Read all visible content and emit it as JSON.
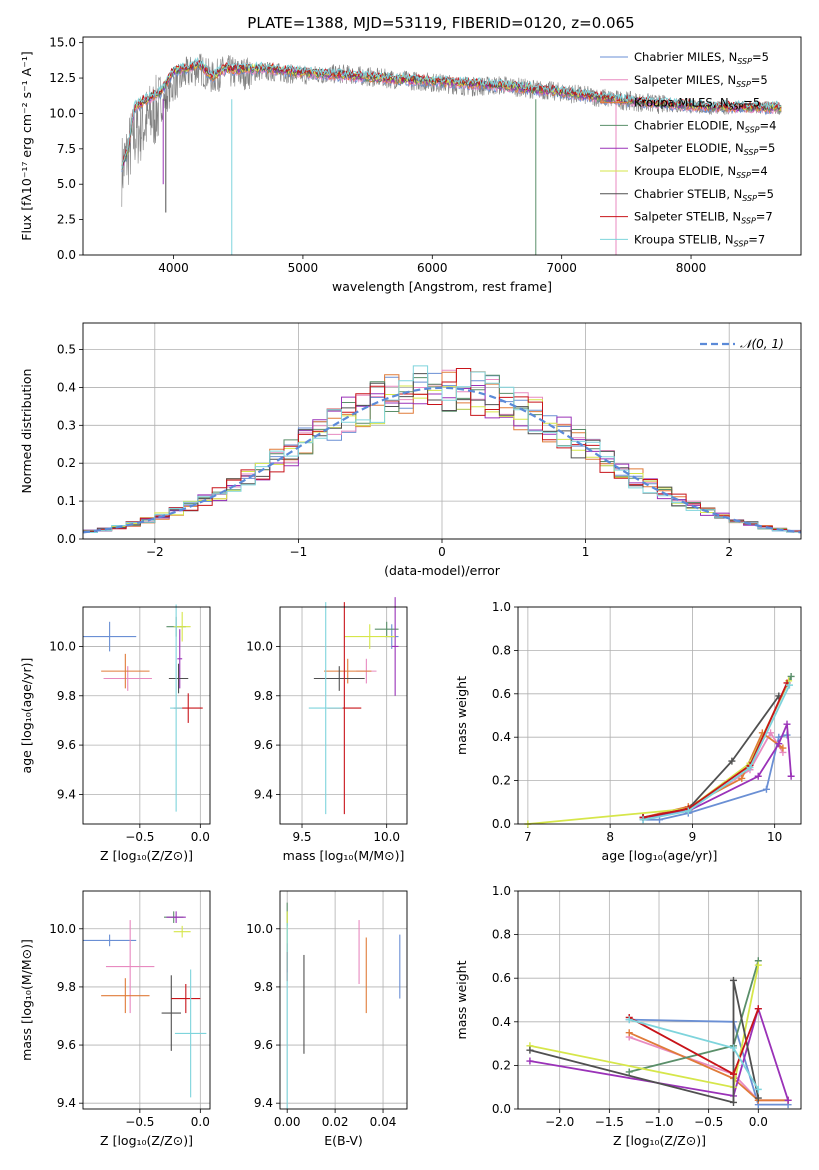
{
  "title": "PLATE=1388, MJD=53119, FIBERID=0120, z=0.065",
  "chart_data": [
    {
      "id": "spectrum",
      "type": "line",
      "xlabel": "wavelength [Angstrom, rest frame]",
      "ylabel": "Flux [fλ10⁻¹⁷ erg cm⁻² s⁻¹ A⁻¹]",
      "xlim": [
        3300,
        8850
      ],
      "ylim": [
        0,
        15.4
      ],
      "xticks": [
        4000,
        5000,
        6000,
        7000,
        8000
      ],
      "yticks": [
        0.0,
        2.5,
        5.0,
        7.5,
        10.0,
        12.5,
        15.0
      ],
      "grid": false,
      "legend_position": "right",
      "data_series": {
        "name": "data",
        "color": "#808080",
        "x": [
          3600,
          3700,
          3800,
          3900,
          4000,
          4100,
          4200,
          4300,
          4400,
          4500,
          4700,
          5000,
          5300,
          5600,
          6000,
          6300,
          6560,
          6700,
          7000,
          7400,
          7800,
          8100,
          8600
        ],
        "y": [
          6.0,
          8.5,
          9.5,
          10.5,
          12.0,
          12.8,
          13.2,
          12.5,
          13.0,
          12.8,
          13.0,
          12.7,
          12.8,
          12.5,
          12.2,
          11.9,
          12.0,
          11.8,
          11.5,
          11.0,
          10.6,
          10.4,
          10.4
        ]
      },
      "series": [
        {
          "name": "Chabrier MILES, N$_{SSP}$=5",
          "color": "#6a8fd4"
        },
        {
          "name": "Salpeter MILES, N$_{SSP}$=5",
          "color": "#e88ac0"
        },
        {
          "name": "Kroupa MILES, N$_{SSP}$=5",
          "color": "#e07b39"
        },
        {
          "name": "Chabrier ELODIE, N$_{SSP}$=4",
          "color": "#5a8f6a"
        },
        {
          "name": "Salpeter ELODIE, N$_{SSP}$=5",
          "color": "#9a32b8"
        },
        {
          "name": "Kroupa ELODIE, N$_{SSP}$=4",
          "color": "#d6e64a"
        },
        {
          "name": "Chabrier STELIB, N$_{SSP}$=5",
          "color": "#505050"
        },
        {
          "name": "Salpeter STELIB, N$_{SSP}$=7",
          "color": "#c8141a"
        },
        {
          "name": "Kroupa STELIB, N$_{SSP}$=7",
          "color": "#7ed4dc"
        }
      ],
      "model_x": [
        3600,
        3650,
        3700,
        3800,
        3900,
        4000,
        4100,
        4200,
        4300,
        4400,
        4500,
        4700,
        5000,
        5300,
        5600,
        6000,
        6300,
        6600,
        7000,
        7400,
        7800,
        8100,
        8600
      ],
      "model_y": [
        6.2,
        7.5,
        10.5,
        11.0,
        11.5,
        13.0,
        13.2,
        13.5,
        12.6,
        13.2,
        13.1,
        13.2,
        12.9,
        12.7,
        12.5,
        12.3,
        12.1,
        11.9,
        11.5,
        11.0,
        10.7,
        10.5,
        10.4
      ]
    },
    {
      "id": "residuals",
      "type": "histogram",
      "xlabel": "(data-model)/error",
      "ylabel": "Normed distribution",
      "xlim": [
        -2.5,
        2.5
      ],
      "ylim": [
        0,
        0.57
      ],
      "xticks": [
        -2,
        -1,
        0,
        1,
        2
      ],
      "yticks": [
        0.0,
        0.1,
        0.2,
        0.3,
        0.4,
        0.5
      ],
      "grid": true,
      "legend": [
        {
          "name": "𝒩(0, 1)",
          "color": "#5b8ad8",
          "style": "dashed"
        }
      ],
      "legend_position": "top-right",
      "bin_width": 0.1
    },
    {
      "id": "age_vs_Z",
      "type": "scatter",
      "xlabel": "Z [log₁₀(Z/Z⊙)]",
      "ylabel": "age  [log₁₀(age/yr)]",
      "xlim": [
        -0.97,
        0.08
      ],
      "ylim": [
        9.28,
        10.16
      ],
      "xticks": [
        -0.5,
        0.0
      ],
      "yticks": [
        9.4,
        9.6,
        9.8,
        10.0
      ],
      "grid": true,
      "points": [
        {
          "series": 0,
          "x": -0.75,
          "y": 10.04,
          "xerr": 0.22,
          "yerr": 0.06
        },
        {
          "series": 1,
          "x": -0.6,
          "y": 9.87,
          "xerr": 0.2,
          "yerr": 0.05
        },
        {
          "series": 2,
          "x": -0.62,
          "y": 9.9,
          "xerr": 0.2,
          "yerr": 0.07
        },
        {
          "series": 3,
          "x": -0.2,
          "y": 10.08,
          "xerr": 0.08,
          "yerr": 0.04
        },
        {
          "series": 4,
          "x": -0.17,
          "y": 9.95,
          "xerr": 0.02,
          "yerr": 0.12
        },
        {
          "series": 5,
          "x": -0.15,
          "y": 10.08,
          "xerr": 0.07,
          "yerr": 0.06
        },
        {
          "series": 6,
          "x": -0.18,
          "y": 9.87,
          "xerr": 0.08,
          "yerr": 0.06
        },
        {
          "series": 7,
          "x": -0.1,
          "y": 9.75,
          "xerr": 0.12,
          "yerr": 0.06
        },
        {
          "series": 8,
          "x": -0.2,
          "y": 9.75,
          "xerr": 0.05,
          "yerr": 0.42
        }
      ]
    },
    {
      "id": "age_vs_mass",
      "type": "scatter",
      "xlabel": "mass [log₁₀(M/M⊙)]",
      "ylabel": "",
      "xlim": [
        9.37,
        10.12
      ],
      "ylim": [
        9.28,
        10.16
      ],
      "xticks": [
        9.5,
        10.0
      ],
      "yticks": [
        9.4,
        9.6,
        9.8,
        10.0
      ],
      "grid": true,
      "points": [
        {
          "series": 0,
          "x": 10.03,
          "y": 10.04,
          "xerr": 0.04,
          "yerr": 0.05
        },
        {
          "series": 1,
          "x": 9.88,
          "y": 9.9,
          "xerr": 0.06,
          "yerr": 0.05
        },
        {
          "series": 2,
          "x": 9.77,
          "y": 9.9,
          "xerr": 0.14,
          "yerr": 0.05
        },
        {
          "series": 3,
          "x": 10.0,
          "y": 10.07,
          "xerr": 0.07,
          "yerr": 0.03
        },
        {
          "series": 4,
          "x": 10.05,
          "y": 10.0,
          "xerr": 0.02,
          "yerr": 0.2
        },
        {
          "series": 5,
          "x": 9.9,
          "y": 10.04,
          "xerr": 0.15,
          "yerr": 0.05
        },
        {
          "series": 6,
          "x": 9.72,
          "y": 9.87,
          "xerr": 0.15,
          "yerr": 0.05
        },
        {
          "series": 7,
          "x": 9.75,
          "y": 9.75,
          "xerr": 0.1,
          "yerr": 0.43
        },
        {
          "series": 8,
          "x": 9.64,
          "y": 9.75,
          "xerr": 0.1,
          "yerr": 0.43
        }
      ]
    },
    {
      "id": "mass_weight_vs_age",
      "type": "line",
      "xlabel": "age  [log₁₀(age/yr)]",
      "ylabel": "mass weight",
      "xlim": [
        6.88,
        10.32
      ],
      "ylim": [
        0.0,
        1.0
      ],
      "xticks": [
        7,
        8,
        9,
        10
      ],
      "yticks": [
        0.0,
        0.2,
        0.4,
        0.6,
        0.8,
        1.0
      ],
      "grid": true,
      "series": [
        {
          "series": 0,
          "x": [
            8.4,
            8.6,
            8.95,
            9.9,
            10.05,
            10.15
          ],
          "y": [
            0.02,
            0.02,
            0.05,
            0.16,
            0.4,
            0.41
          ]
        },
        {
          "series": 1,
          "x": [
            8.4,
            8.95,
            9.7,
            9.95,
            10.1
          ],
          "y": [
            0.03,
            0.07,
            0.25,
            0.42,
            0.33
          ]
        },
        {
          "series": 2,
          "x": [
            8.4,
            8.95,
            9.6,
            9.85,
            10.1
          ],
          "y": [
            0.03,
            0.08,
            0.21,
            0.42,
            0.35
          ]
        },
        {
          "series": 3,
          "x": [
            8.4,
            8.95,
            9.7,
            10.2
          ],
          "y": [
            0.03,
            0.06,
            0.28,
            0.68
          ]
        },
        {
          "series": 4,
          "x": [
            8.4,
            8.95,
            9.8,
            10.05,
            10.15,
            10.2
          ],
          "y": [
            0.03,
            0.06,
            0.22,
            0.37,
            0.46,
            0.22
          ]
        },
        {
          "series": 5,
          "x": [
            7.0,
            8.95,
            9.7,
            10.17
          ],
          "y": [
            0.0,
            0.07,
            0.28,
            0.66
          ]
        },
        {
          "series": 6,
          "x": [
            8.4,
            8.95,
            9.48,
            10.05
          ],
          "y": [
            0.03,
            0.07,
            0.29,
            0.59
          ]
        },
        {
          "series": 7,
          "x": [
            8.4,
            8.95,
            9.7,
            10.15
          ],
          "y": [
            0.03,
            0.07,
            0.27,
            0.65
          ]
        },
        {
          "series": 8,
          "x": [
            8.4,
            8.95,
            9.7,
            10.18
          ],
          "y": [
            0.02,
            0.06,
            0.26,
            0.64
          ]
        }
      ]
    },
    {
      "id": "mass_vs_Z",
      "type": "scatter",
      "xlabel": "Z [log₁₀(Z/Z⊙)]",
      "ylabel": "mass [log₁₀(M/M⊙)]",
      "xlim": [
        -0.97,
        0.08
      ],
      "ylim": [
        9.38,
        10.13
      ],
      "xticks": [
        -0.5,
        0.0
      ],
      "yticks": [
        9.4,
        9.6,
        9.8,
        10.0
      ],
      "grid": true,
      "points": [
        {
          "series": 0,
          "x": -0.75,
          "y": 9.96,
          "xerr": 0.22,
          "yerr": 0.02
        },
        {
          "series": 1,
          "x": -0.58,
          "y": 9.87,
          "xerr": 0.2,
          "yerr": 0.16
        },
        {
          "series": 2,
          "x": -0.62,
          "y": 9.77,
          "xerr": 0.2,
          "yerr": 0.06
        },
        {
          "series": 3,
          "x": -0.22,
          "y": 10.04,
          "xerr": 0.08,
          "yerr": 0.02
        },
        {
          "series": 4,
          "x": -0.2,
          "y": 10.04,
          "xerr": 0.08,
          "yerr": 0.02
        },
        {
          "series": 5,
          "x": -0.15,
          "y": 9.99,
          "xerr": 0.07,
          "yerr": 0.02
        },
        {
          "series": 6,
          "x": -0.24,
          "y": 9.71,
          "xerr": 0.08,
          "yerr": 0.13
        },
        {
          "series": 7,
          "x": -0.12,
          "y": 9.76,
          "xerr": 0.12,
          "yerr": 0.05
        },
        {
          "series": 8,
          "x": -0.08,
          "y": 9.64,
          "xerr": 0.13,
          "yerr": 0.22
        }
      ]
    },
    {
      "id": "mass_vs_EBV",
      "type": "scatter",
      "xlabel": "E(B-V)",
      "ylabel": "",
      "xlim": [
        -0.003,
        0.05
      ],
      "ylim": [
        9.38,
        10.13
      ],
      "xticks": [
        0.0,
        0.02,
        0.04
      ],
      "yticks": [
        9.4,
        9.6,
        9.8,
        10.0
      ],
      "grid": true,
      "points": [
        {
          "series": 0,
          "x": 0.047,
          "y": 9.87,
          "xerr": 0.0,
          "yerr": 0.11
        },
        {
          "series": 1,
          "x": 0.03,
          "y": 9.92,
          "xerr": 0.0,
          "yerr": 0.11
        },
        {
          "series": 2,
          "x": 0.033,
          "y": 9.84,
          "xerr": 0.0,
          "yerr": 0.13
        },
        {
          "series": 3,
          "x": 0.0,
          "y": 10.05,
          "xerr": 0.0,
          "yerr": 0.04
        },
        {
          "series": 4,
          "x": 0.0,
          "y": 9.9,
          "xerr": 0.0,
          "yerr": 0.05
        },
        {
          "series": 5,
          "x": 0.0,
          "y": 9.96,
          "xerr": 0.0,
          "yerr": 0.1
        },
        {
          "series": 6,
          "x": 0.007,
          "y": 9.74,
          "xerr": 0.0,
          "yerr": 0.17
        },
        {
          "series": 7,
          "x": 0.0,
          "y": 9.87,
          "xerr": 0.0,
          "yerr": 0.05
        },
        {
          "series": 8,
          "x": 0.0,
          "y": 9.7,
          "xerr": 0.0,
          "yerr": 0.32
        }
      ]
    },
    {
      "id": "mass_weight_vs_Z",
      "type": "line",
      "xlabel": "Z [log₁₀(Z/Z⊙)]",
      "ylabel": "mass weight",
      "xlim": [
        -2.42,
        0.43
      ],
      "ylim": [
        0.0,
        1.0
      ],
      "xticks": [
        -2.0,
        -1.5,
        -1.0,
        -0.5,
        0.0
      ],
      "yticks": [
        0.0,
        0.2,
        0.4,
        0.6,
        0.8,
        1.0
      ],
      "grid": true,
      "series": [
        {
          "series": 0,
          "x": [
            -1.3,
            -0.25,
            0.0,
            0.3
          ],
          "y": [
            0.41,
            0.4,
            0.02,
            0.02
          ]
        },
        {
          "series": 1,
          "x": [
            -1.3,
            -0.25,
            0.0,
            0.3
          ],
          "y": [
            0.33,
            0.16,
            0.04,
            0.04
          ]
        },
        {
          "series": 2,
          "x": [
            -1.3,
            -0.25,
            0.0,
            0.3
          ],
          "y": [
            0.35,
            0.14,
            0.04,
            0.04
          ]
        },
        {
          "series": 3,
          "x": [
            -1.3,
            -0.25,
            0.0
          ],
          "y": [
            0.17,
            0.29,
            0.68
          ]
        },
        {
          "series": 4,
          "x": [
            -2.3,
            -0.25,
            0.0,
            0.3
          ],
          "y": [
            0.22,
            0.06,
            0.46,
            0.04
          ]
        },
        {
          "series": 5,
          "x": [
            -2.3,
            -0.25,
            0.0
          ],
          "y": [
            0.29,
            0.1,
            0.66
          ]
        },
        {
          "series": 6,
          "x": [
            -2.3,
            -0.25,
            -0.25,
            0.0
          ],
          "y": [
            0.27,
            0.03,
            0.59,
            0.05
          ]
        },
        {
          "series": 7,
          "x": [
            -1.3,
            -0.25,
            0.0
          ],
          "y": [
            0.42,
            0.16,
            0.46
          ]
        },
        {
          "series": 8,
          "x": [
            -1.3,
            -0.25,
            0.0
          ],
          "y": [
            0.41,
            0.28,
            0.09
          ]
        }
      ]
    }
  ]
}
